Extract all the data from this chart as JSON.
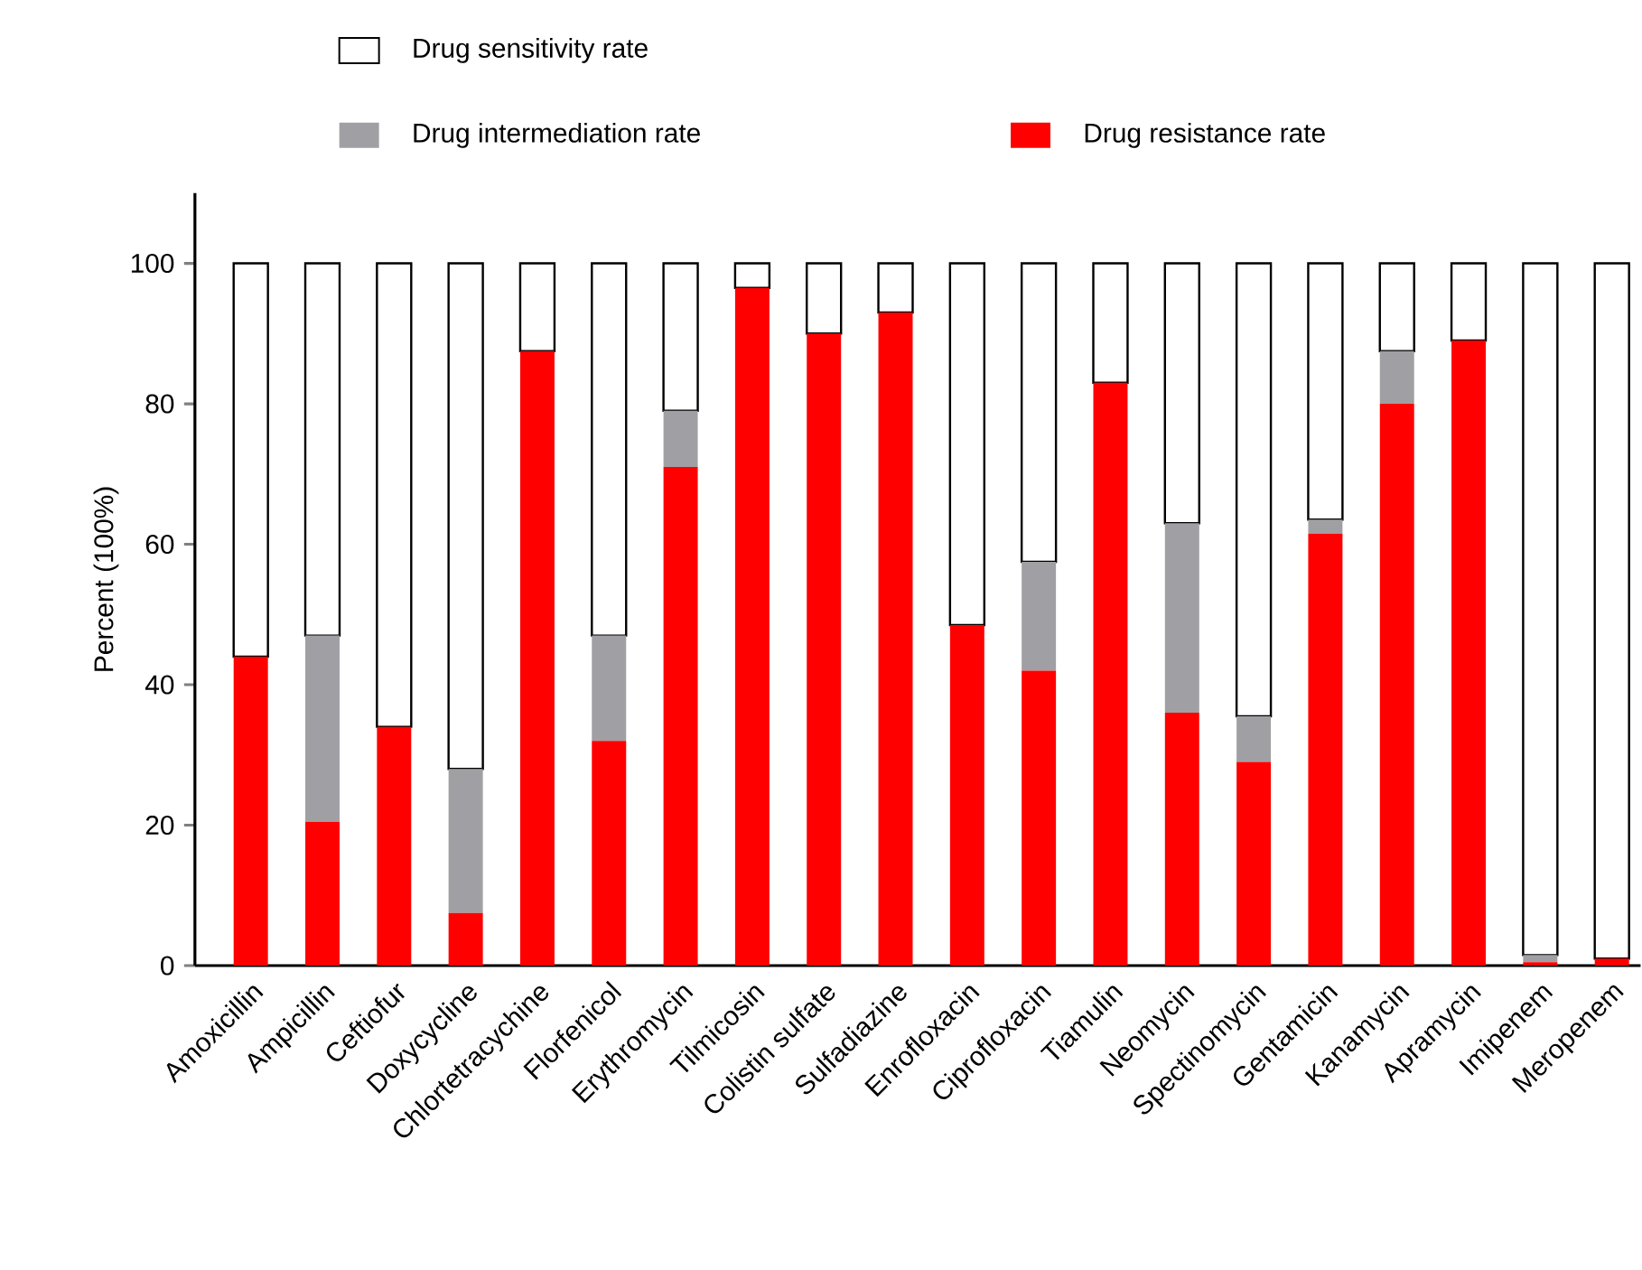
{
  "chart_data": {
    "type": "bar",
    "stacked": true,
    "ylabel": "Percent (100%)",
    "categories": [
      "Amoxicillin",
      "Ampicillin",
      "Ceftiofur",
      "Doxycycline",
      "Chlortetracychine",
      "Florfenicol",
      "Erythromycin",
      "Tilmicosin",
      "Colistin sulfate",
      "Sulfadiazine",
      "Enrofloxacin",
      "Ciprofloxacin",
      "Tiamulin",
      "Neomycin",
      "Spectinomycin",
      "Gentamicin",
      "Kanamycin",
      "Apramycin",
      "Imipenem",
      "Meropenem"
    ],
    "series": [
      {
        "name": "Drug resistance rate",
        "color": "#ff0000",
        "values": [
          44,
          20.5,
          34,
          7.5,
          87.5,
          32,
          71,
          96.5,
          90,
          93,
          48.5,
          42,
          83,
          36,
          29,
          61.5,
          80,
          89,
          0.5,
          1
        ]
      },
      {
        "name": "Drug intermediation rate",
        "color": "#a0a0a4",
        "values": [
          0,
          26.5,
          0,
          20.5,
          0,
          15,
          8,
          0,
          0,
          0,
          0,
          15.5,
          0,
          27,
          6.5,
          2,
          7.5,
          0,
          1,
          0
        ]
      },
      {
        "name": "Drug sensitivity rate",
        "color": "#ffffff",
        "values": [
          56,
          53,
          66,
          72,
          12.5,
          53,
          21,
          3.5,
          10,
          7,
          51.5,
          42.5,
          17,
          37,
          64.5,
          36.5,
          12.5,
          11,
          98.5,
          99
        ]
      }
    ],
    "ylim": [
      0,
      110
    ],
    "yticks": [
      0,
      20,
      40,
      60,
      80,
      100
    ],
    "legend": "top"
  }
}
